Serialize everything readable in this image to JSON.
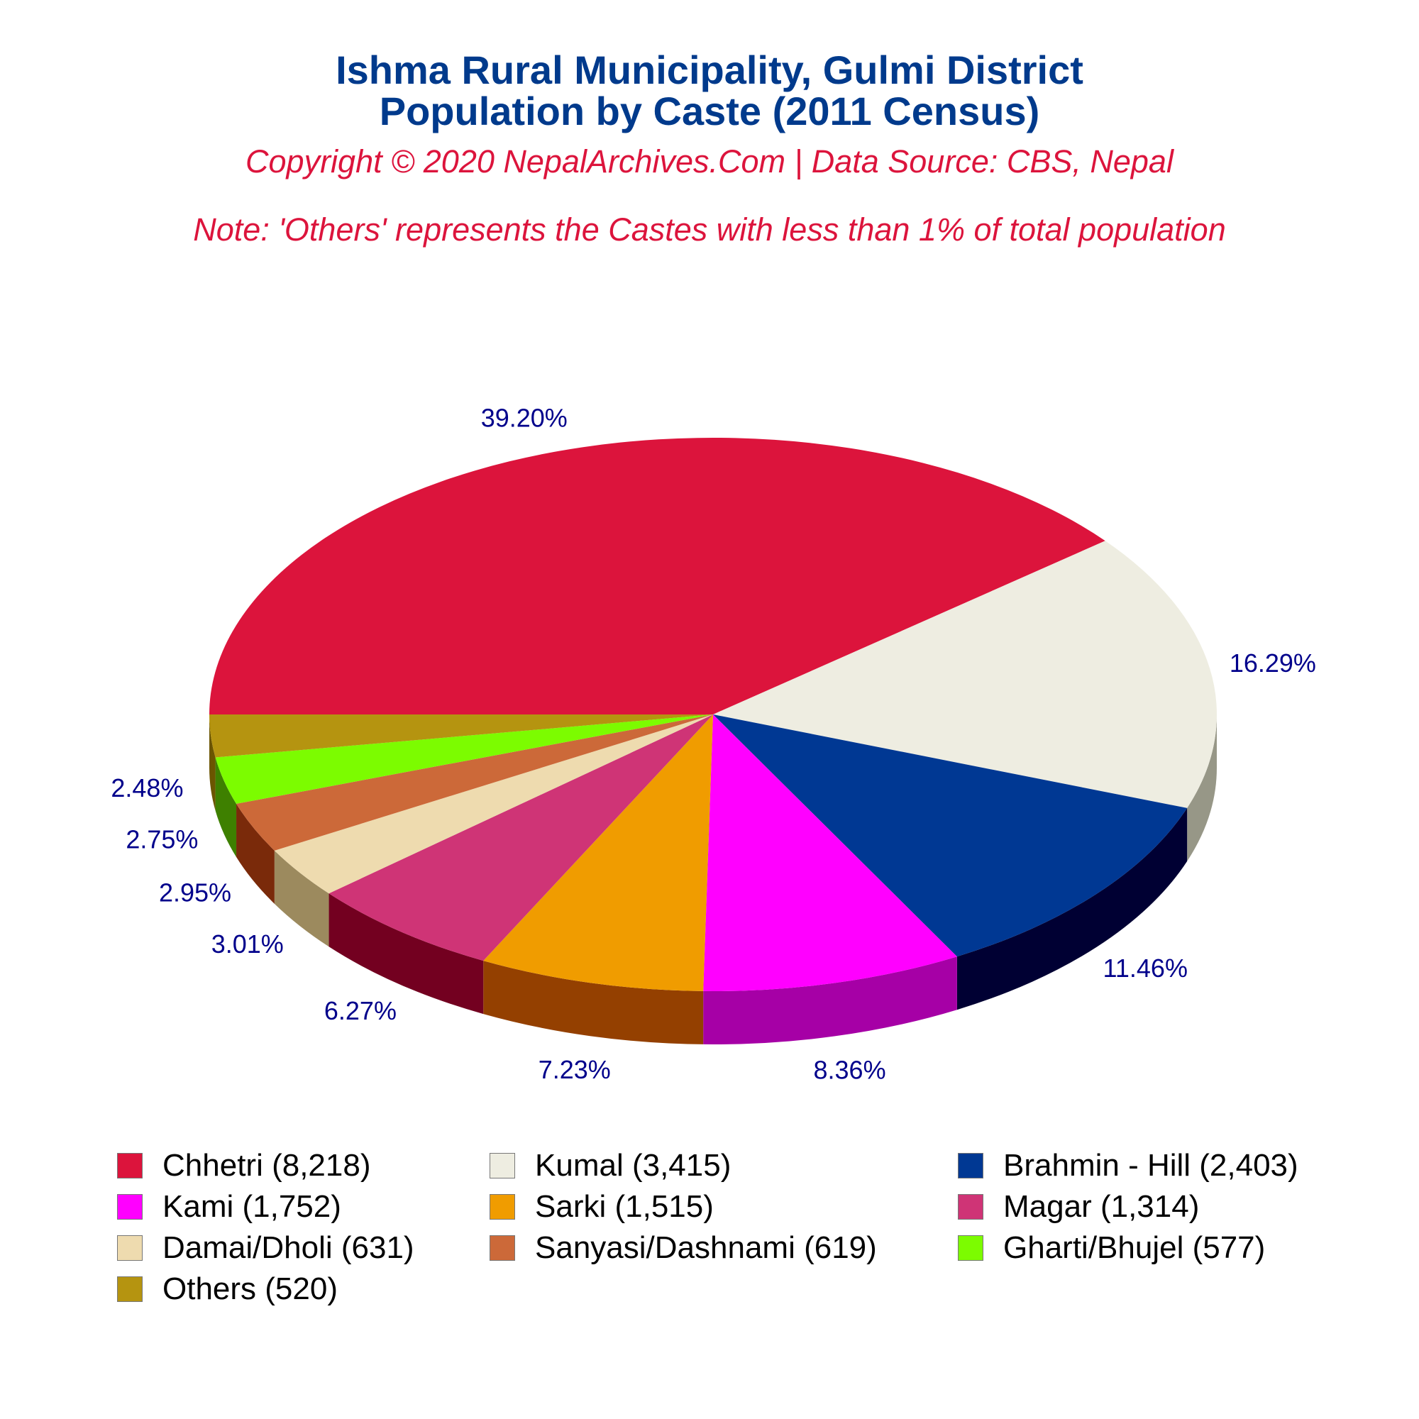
{
  "header": {
    "title_line1": "Ishma Rural Municipality, Gulmi District",
    "title_line2": "Population by Caste (2011 Census)",
    "copyright": "Copyright © 2020 NepalArchives.Com | Data Source: CBS, Nepal",
    "note": "Note: 'Others' represents the Castes with less than 1% of total population"
  },
  "chart_data": {
    "type": "pie",
    "title": "Ishma Rural Municipality, Gulmi District Population by Caste (2011 Census)",
    "style": "3d-exploded-perspective",
    "slices": [
      {
        "name": "Chhetri",
        "value": 8218,
        "percent_label": "39.20%",
        "legend": "Chhetri (8,218)",
        "color": "#dc143c",
        "side_color": "#8b0a26"
      },
      {
        "name": "Kumal",
        "value": 3415,
        "percent_label": "16.29%",
        "legend": "Kumal (3,415)",
        "color": "#eeede1",
        "side_color": "#979787"
      },
      {
        "name": "Brahmin - Hill",
        "value": 2403,
        "percent_label": "11.46%",
        "legend": "Brahmin - Hill (2,403)",
        "color": "#003893",
        "side_color": "#000033"
      },
      {
        "name": "Kami",
        "value": 1752,
        "percent_label": "8.36%",
        "legend": "Kami (1,752)",
        "color": "#ff00ff",
        "side_color": "#a600a6"
      },
      {
        "name": "Sarki",
        "value": 1515,
        "percent_label": "7.23%",
        "legend": "Sarki (1,515)",
        "color": "#f09c00",
        "side_color": "#944000"
      },
      {
        "name": "Magar",
        "value": 1314,
        "percent_label": "6.27%",
        "legend": "Magar (1,314)",
        "color": "#cf3476",
        "side_color": "#730020"
      },
      {
        "name": "Damai/Dholi",
        "value": 631,
        "percent_label": "3.01%",
        "legend": "Damai/Dholi (631)",
        "color": "#eedbaf",
        "side_color": "#9c8a5e"
      },
      {
        "name": "Sanyasi/Dashnami",
        "value": 619,
        "percent_label": "2.95%",
        "legend": "Sanyasi/Dashnami (619)",
        "color": "#cc6939",
        "side_color": "#7a2a0a"
      },
      {
        "name": "Gharti/Bhujel",
        "value": 577,
        "percent_label": "2.75%",
        "legend": "Gharti/Bhujel (577)",
        "color": "#7cfc00",
        "side_color": "#3e8000"
      },
      {
        "name": "Others",
        "value": 520,
        "percent_label": "2.48%",
        "legend": "Others (520)",
        "color": "#b59410",
        "side_color": "#6b5500"
      }
    ],
    "label_color": "#00008b",
    "legend_order": [
      "Chhetri",
      "Kumal",
      "Brahmin - Hill",
      "Kami",
      "Sarki",
      "Magar",
      "Damai/Dholi",
      "Sanyasi/Dashnami",
      "Gharti/Bhujel",
      "Others"
    ]
  }
}
